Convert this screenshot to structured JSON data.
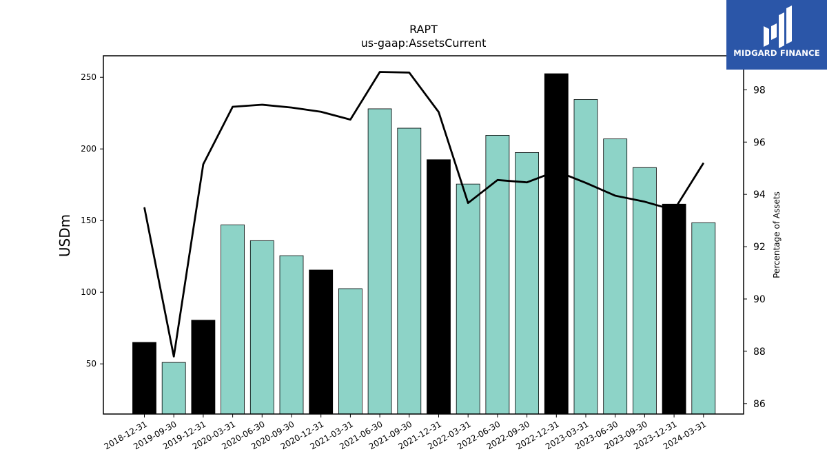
{
  "chart_data": {
    "type": "bar",
    "title": "RAPT",
    "subtitle": "us-gaap:AssetsCurrent",
    "ylabel": "USDm",
    "y2label": "Percentage of Assets",
    "categories": [
      "2018-12-31",
      "2019-09-30",
      "2019-12-31",
      "2020-03-31",
      "2020-06-30",
      "2020-09-30",
      "2020-12-31",
      "2021-03-31",
      "2021-06-30",
      "2021-09-30",
      "2021-12-31",
      "2022-03-31",
      "2022-06-30",
      "2022-09-30",
      "2022-12-31",
      "2023-03-31",
      "2023-06-30",
      "2023-09-30",
      "2023-12-31",
      "2024-03-31"
    ],
    "series": [
      {
        "type": "bar",
        "axis": "left",
        "values": [
          65,
          51,
          80.5,
          147,
          136,
          125.5,
          115.5,
          102.5,
          228,
          214.5,
          192.5,
          175.5,
          209.5,
          197.5,
          252.5,
          234.5,
          207,
          187,
          161.5,
          148.5
        ],
        "colors": [
          "#000000",
          "#8dd3c7",
          "#000000",
          "#8dd3c7",
          "#8dd3c7",
          "#8dd3c7",
          "#000000",
          "#8dd3c7",
          "#8dd3c7",
          "#8dd3c7",
          "#000000",
          "#8dd3c7",
          "#8dd3c7",
          "#8dd3c7",
          "#000000",
          "#8dd3c7",
          "#8dd3c7",
          "#8dd3c7",
          "#000000",
          "#8dd3c7"
        ]
      },
      {
        "type": "line",
        "axis": "right",
        "color": "#000000",
        "values": [
          93.5,
          87.8,
          95.15,
          97.35,
          97.43,
          97.32,
          97.16,
          96.86,
          98.68,
          98.66,
          97.15,
          93.67,
          94.55,
          94.46,
          94.89,
          94.44,
          93.95,
          93.72,
          93.4,
          95.2
        ]
      }
    ],
    "ylim": [
      15,
      265
    ],
    "y2lim": [
      85.6,
      99.3
    ],
    "yticks": [
      50,
      100,
      150,
      200,
      250
    ],
    "y2ticks": [
      86,
      88,
      90,
      92,
      94,
      96,
      98
    ],
    "grid": false
  },
  "logo": {
    "text": "MIDGARD FINANCE",
    "bg_color": "#2b56a8"
  }
}
